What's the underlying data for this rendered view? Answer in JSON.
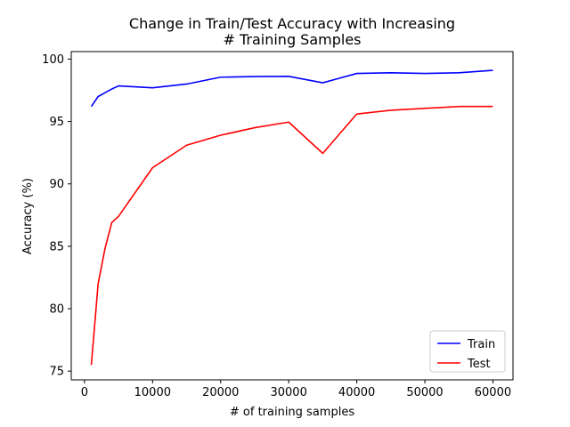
{
  "chart_data": {
    "type": "line",
    "title": "Change in Train/Test Accuracy with Increasing\n# Training Samples",
    "xlabel": "# of training samples",
    "ylabel": "Accuracy (%)",
    "xlim": [
      -1950,
      62950
    ],
    "ylim": [
      74.3,
      100.6
    ],
    "xticks": [
      0,
      10000,
      20000,
      30000,
      40000,
      50000,
      60000
    ],
    "yticks": [
      75,
      80,
      85,
      90,
      95,
      100
    ],
    "grid": false,
    "legend_position": "lower-right",
    "series": [
      {
        "name": "Train",
        "color": "#0000ff",
        "x": [
          1000,
          2000,
          3000,
          4000,
          5000,
          10000,
          15000,
          20000,
          25000,
          30000,
          35000,
          40000,
          45000,
          50000,
          55000,
          60000
        ],
        "y": [
          96.2,
          97.0,
          97.3,
          97.6,
          97.85,
          97.7,
          98.0,
          98.55,
          98.6,
          98.62,
          98.1,
          98.85,
          98.9,
          98.85,
          98.9,
          99.1
        ]
      },
      {
        "name": "Test",
        "color": "#ff0000",
        "x": [
          1000,
          2000,
          3000,
          4000,
          5000,
          10000,
          15000,
          20000,
          25000,
          30000,
          35000,
          40000,
          45000,
          50000,
          55000,
          60000
        ],
        "y": [
          75.5,
          82.0,
          84.8,
          86.9,
          87.4,
          91.3,
          93.1,
          93.9,
          94.5,
          94.95,
          92.45,
          95.6,
          95.9,
          96.05,
          96.2,
          96.2
        ]
      }
    ]
  }
}
